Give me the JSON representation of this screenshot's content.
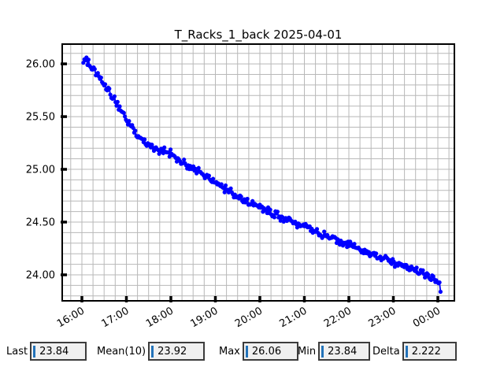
{
  "chart": {
    "title": "T_Racks_1_back 2025-04-01",
    "colors": {
      "line": "#0000ff",
      "grid": "#b8b8b8",
      "axes_border": "#000000",
      "background": "#ffffff",
      "entry_background": "#f0f0f0",
      "entry_border": "#3c3c3c",
      "text_cursor": "#2272b9"
    }
  },
  "chart_data": {
    "type": "line",
    "title": "T_Racks_1_back 2025-04-01",
    "series_name": "T_Racks_1_back",
    "xlabel": "",
    "ylabel": "",
    "x_unit": "time (HH:MM)",
    "x_tick_minutes": [
      0,
      60,
      120,
      180,
      240,
      300,
      360,
      420,
      480
    ],
    "x_tick_labels": [
      "16:00",
      "17:00",
      "18:00",
      "19:00",
      "20:00",
      "21:00",
      "22:00",
      "23:00",
      "00:00"
    ],
    "y_ticks": [
      24.0,
      24.5,
      25.0,
      25.5,
      26.0
    ],
    "y_tick_labels": [
      "24.00",
      "24.50",
      "25.00",
      "25.50",
      "26.00"
    ],
    "xlim_minutes": [
      -26.5,
      502.3
    ],
    "ylim": [
      23.754,
      26.187
    ],
    "grid": true,
    "minor_grid_step_x_minutes": 15,
    "minor_grid_step_y": 0.1,
    "marker": "circle",
    "line_color": "#0000ff",
    "noise_amplitude": 0.045,
    "sampling_step_minutes": 1.4,
    "anchor_points_minutes": [
      2,
      6,
      10,
      16,
      22,
      30,
      38,
      46,
      54,
      60,
      68,
      75,
      82,
      90,
      100,
      110,
      120,
      132,
      144,
      156,
      168,
      180,
      192,
      204,
      216,
      228,
      240,
      252,
      264,
      276,
      288,
      300,
      312,
      324,
      336,
      348,
      360,
      372,
      384,
      396,
      408,
      420,
      432,
      444,
      456,
      468,
      476,
      481,
      484
    ],
    "anchor_values": [
      26.04,
      26.05,
      25.99,
      25.95,
      25.89,
      25.8,
      25.72,
      25.63,
      25.55,
      25.48,
      25.4,
      25.32,
      25.28,
      25.23,
      25.2,
      25.18,
      25.15,
      25.09,
      25.03,
      24.98,
      24.93,
      24.88,
      24.82,
      24.77,
      24.72,
      24.68,
      24.65,
      24.6,
      24.56,
      24.52,
      24.49,
      24.46,
      24.42,
      24.38,
      24.35,
      24.32,
      24.29,
      24.25,
      24.21,
      24.18,
      24.15,
      24.12,
      24.09,
      24.05,
      24.02,
      23.99,
      23.96,
      23.92,
      23.86
    ],
    "last_value": 23.84,
    "max_value": 26.06,
    "min_value": 23.84
  },
  "stats": [
    {
      "label": "Last",
      "value": "23.84"
    },
    {
      "label": "Mean(10)",
      "value": "23.92"
    },
    {
      "label": "Max",
      "value": "26.06"
    },
    {
      "label": "Min",
      "value": "23.84"
    },
    {
      "label": "Delta",
      "value": "2.222"
    }
  ]
}
